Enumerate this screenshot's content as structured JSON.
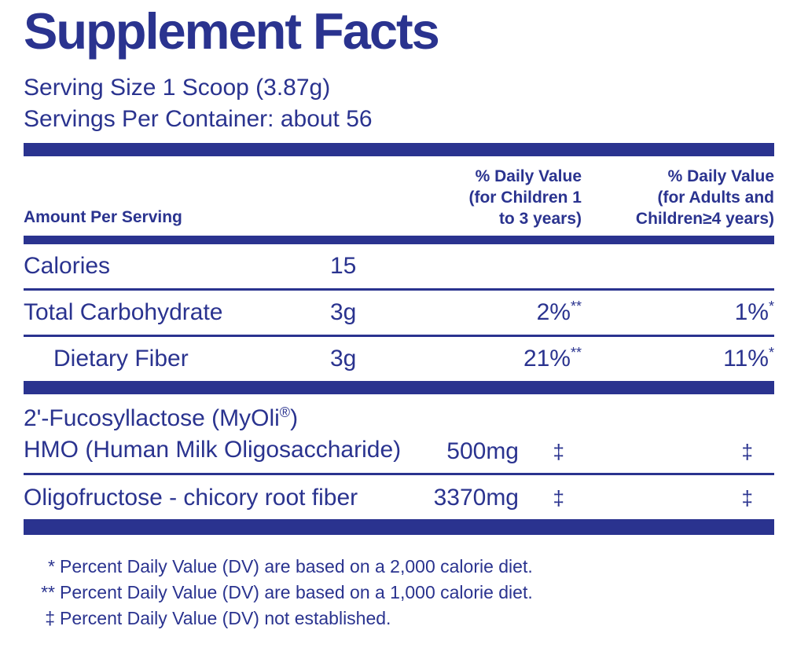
{
  "colors": {
    "navy": "#2A338F",
    "background": "#FFFFFF"
  },
  "label": {
    "title": "Supplement Facts",
    "serving_size": "Serving Size 1 Scoop (3.87g)",
    "servings_per_container": "Servings Per Container: about 56",
    "header": {
      "amount": "Amount Per Serving",
      "children_col": [
        "% Daily Value",
        "(for Children 1",
        "to 3 years)"
      ],
      "adults_col": [
        "% Daily Value",
        "(for Adults and",
        "Children≥4 years)"
      ]
    },
    "rows": [
      {
        "name": "Calories",
        "amount": "15",
        "dv_children": "",
        "dv_children_sup": "",
        "dv_adults": "",
        "dv_adults_sup": ""
      },
      {
        "name": "Total Carbohydrate",
        "amount": "3g",
        "dv_children": "2%",
        "dv_children_sup": "**",
        "dv_adults": "1%",
        "dv_adults_sup": "*"
      },
      {
        "name": "Dietary Fiber",
        "amount": "3g",
        "dv_children": "21%",
        "dv_children_sup": "**",
        "dv_adults": "11%",
        "dv_adults_sup": "*"
      }
    ],
    "ingredient_rows": [
      {
        "name_line1": "2'-Fucosyllactose (MyOli",
        "name_line1_sup": "®",
        "name_line1_close": ")",
        "name_line2": "HMO (Human Milk Oligosaccharide)",
        "amount": "500mg",
        "dv_children": "‡",
        "dv_adults": "‡"
      },
      {
        "name": "Oligofructose - chicory root fiber",
        "amount": "3370mg",
        "dv_children": "‡",
        "dv_adults": "‡"
      }
    ],
    "footnotes": [
      {
        "symbol": "*",
        "text": "Percent Daily Value (DV) are based on a 2,000 calorie diet."
      },
      {
        "symbol": "**",
        "text": "Percent Daily Value (DV) are based on a 1,000 calorie diet."
      },
      {
        "symbol": "‡",
        "text": "Percent Daily Value (DV) not established."
      }
    ]
  }
}
